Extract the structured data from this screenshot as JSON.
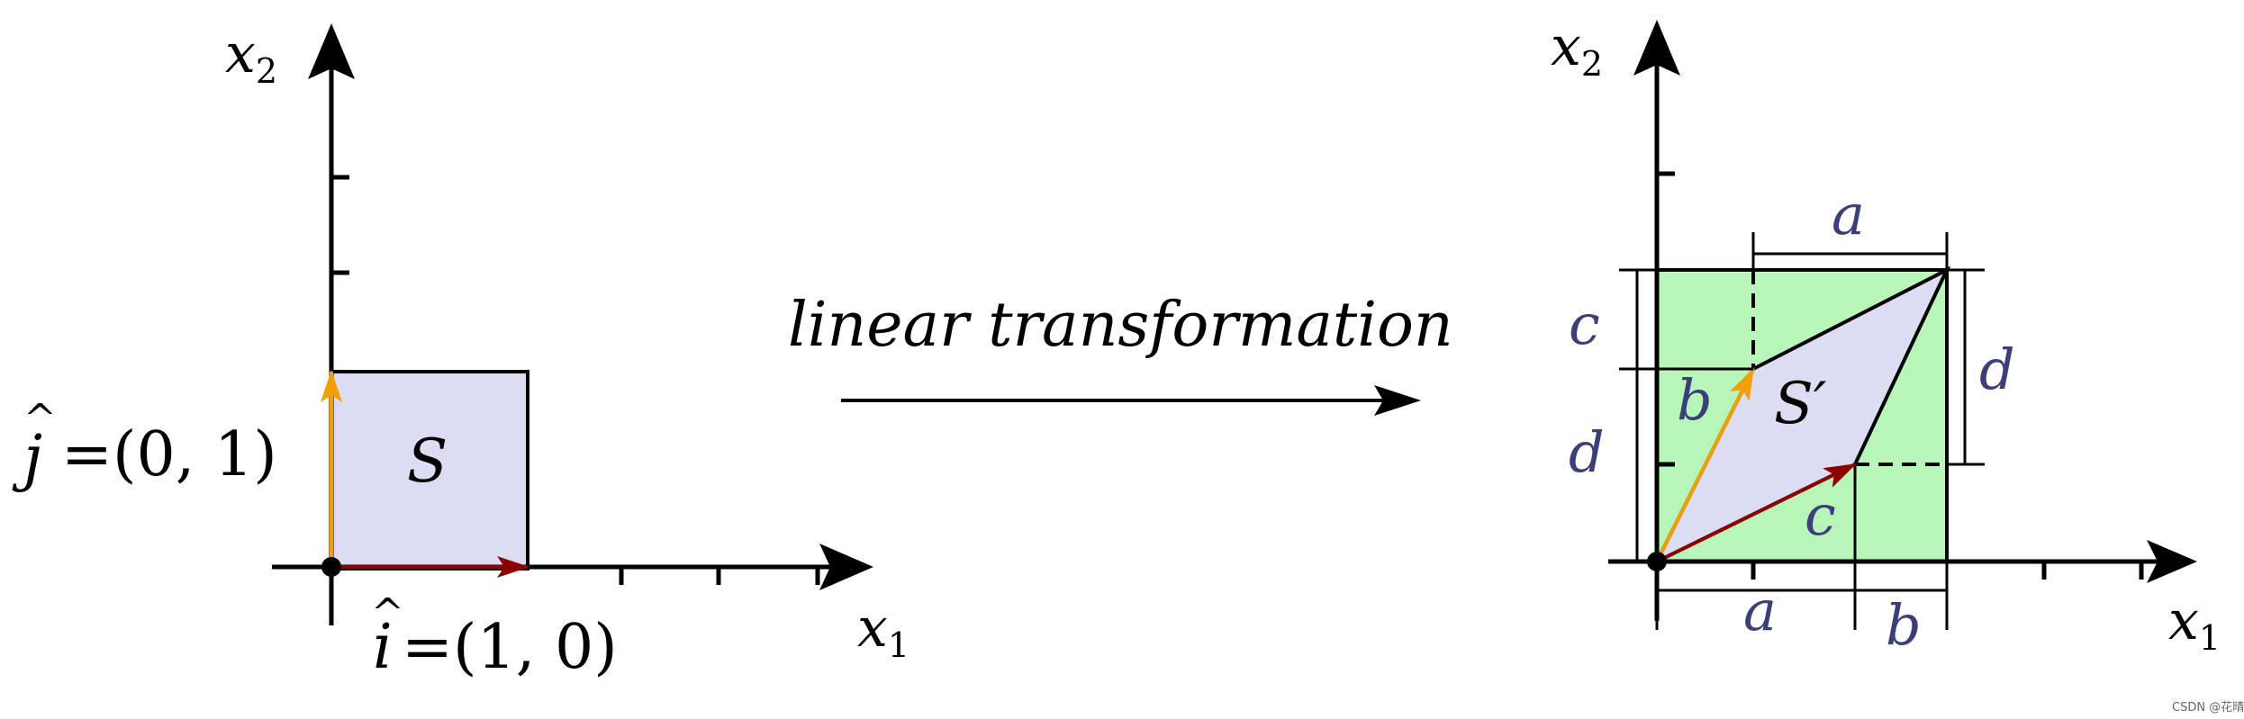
{
  "left": {
    "axis_x": "x",
    "axis_x_sub": "1",
    "axis_y": "x",
    "axis_y_sub": "2",
    "region_label": "S",
    "i_hat": {
      "sym": "i",
      "hat": "^",
      "eq": "=(1, 0)"
    },
    "j_hat": {
      "sym": "j",
      "hat": "^",
      "eq": "=(0, 1)"
    },
    "colors": {
      "square": "#dcdcf3",
      "i_vector": "#8b0000",
      "j_vector": "#f2a000"
    }
  },
  "transform_label": "linear transformation",
  "right": {
    "axis_x": "x",
    "axis_x_sub": "1",
    "axis_y": "x",
    "axis_y_sub": "2",
    "region_label": "S′",
    "labels": {
      "a_top": "a",
      "a_bottom": "a",
      "b_bottom": "b",
      "b_side": "b",
      "c_left": "c",
      "c_side": "c",
      "d_left": "d",
      "d_right": "d"
    },
    "colors": {
      "box": "#b8f5b8",
      "parallelogram": "#dcdcf3",
      "label": "#3a3f7a"
    }
  },
  "watermark": "CSDN @花晴"
}
